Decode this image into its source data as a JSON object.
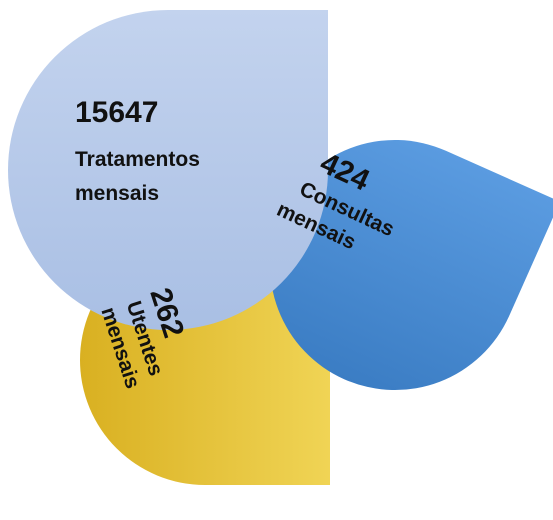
{
  "nodes": [
    {
      "value": 15647,
      "label": [
        "Tratamentos",
        "mensais"
      ]
    },
    {
      "value": 424,
      "label": [
        "Consultas",
        "mensais"
      ]
    },
    {
      "value": 262,
      "label": [
        "Utentes",
        "mensais"
      ]
    }
  ]
}
